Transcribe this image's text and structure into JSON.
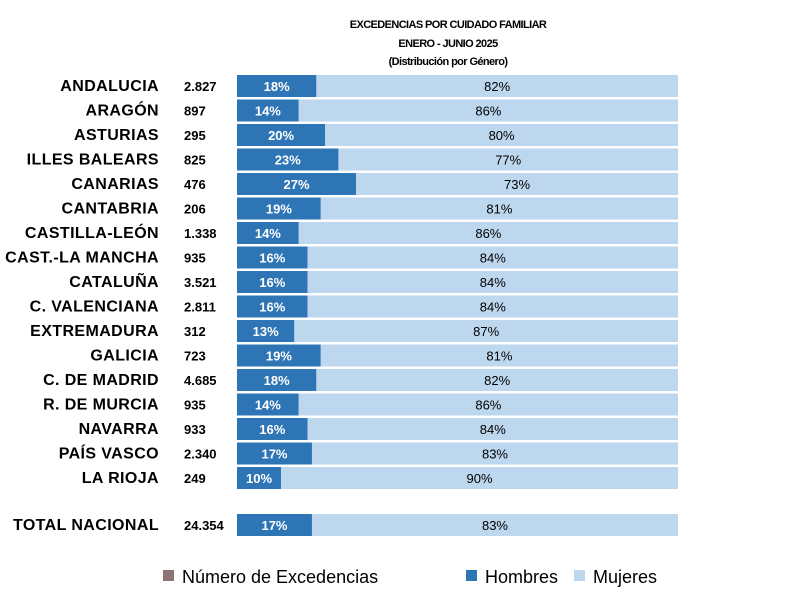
{
  "chart_data": {
    "type": "bar",
    "stacked": true,
    "orientation": "horizontal",
    "title": [
      "EXCEDENCIAS POR CUIDADO FAMILIAR",
      "ENERO - JUNIO 2025",
      "(Distribución por Género)"
    ],
    "categories": [
      "ANDALUCIA",
      "ARAGÓN",
      "ASTURIAS",
      "ILLES BALEARS",
      "CANARIAS",
      "CANTABRIA",
      "CASTILLA-LEÓN",
      "CAST.-LA MANCHA",
      "CATALUÑA",
      "C. VALENCIANA",
      "EXTREMADURA",
      "GALICIA",
      "C. DE MADRID",
      "R. DE MURCIA",
      "NAVARRA",
      "PAÍS VASCO",
      "LA RIOJA"
    ],
    "excedencias": [
      "2.827",
      "897",
      "295",
      "825",
      "476",
      "206",
      "1.338",
      "935",
      "3.521",
      "2.811",
      "312",
      "723",
      "4.685",
      "935",
      "933",
      "2.340",
      "249"
    ],
    "series": [
      {
        "name": "Hombres",
        "color": "#2e75b6",
        "values": [
          18,
          14,
          20,
          23,
          27,
          19,
          14,
          16,
          16,
          16,
          13,
          19,
          18,
          14,
          16,
          17,
          10
        ]
      },
      {
        "name": "Mujeres",
        "color": "#bdd7ee",
        "values": [
          82,
          86,
          80,
          77,
          73,
          81,
          86,
          84,
          84,
          84,
          87,
          81,
          82,
          86,
          84,
          83,
          90
        ]
      }
    ],
    "total": {
      "label": "TOTAL NACIONAL",
      "excedencias": "24.354",
      "hombres": 17,
      "mujeres": 83
    },
    "legend": [
      {
        "name": "Número de Excedencias",
        "color": "#8c7574"
      },
      {
        "name": "Hombres",
        "color": "#2e75b6"
      },
      {
        "name": "Mujeres",
        "color": "#bdd7ee"
      }
    ],
    "legend_position": "bottom",
    "xlim": [
      0,
      100
    ]
  }
}
